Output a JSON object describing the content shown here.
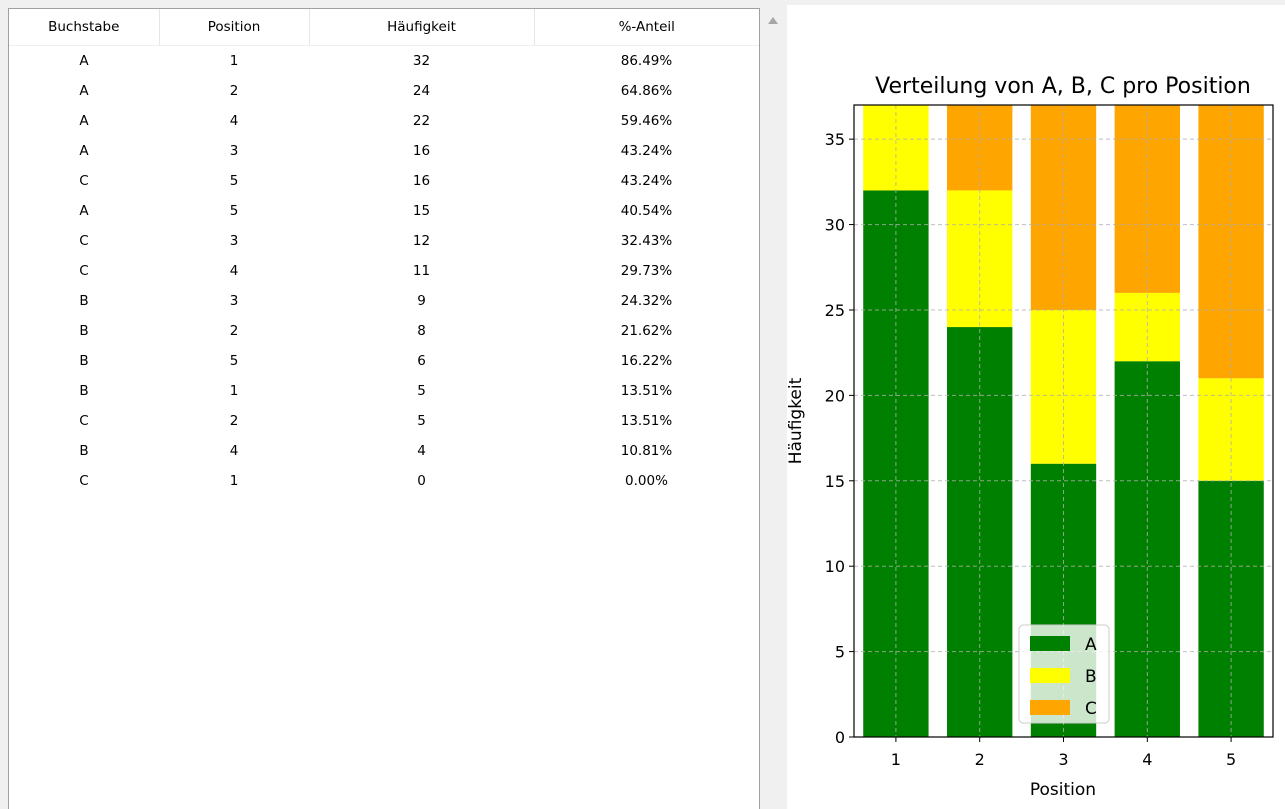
{
  "table": {
    "headers": [
      "Buchstabe",
      "Position",
      "Häufigkeit",
      "%-Anteil"
    ],
    "rows": [
      [
        "A",
        "1",
        "32",
        "86.49%"
      ],
      [
        "A",
        "2",
        "24",
        "64.86%"
      ],
      [
        "A",
        "4",
        "22",
        "59.46%"
      ],
      [
        "A",
        "3",
        "16",
        "43.24%"
      ],
      [
        "C",
        "5",
        "16",
        "43.24%"
      ],
      [
        "A",
        "5",
        "15",
        "40.54%"
      ],
      [
        "C",
        "3",
        "12",
        "32.43%"
      ],
      [
        "C",
        "4",
        "11",
        "29.73%"
      ],
      [
        "B",
        "3",
        "9",
        "24.32%"
      ],
      [
        "B",
        "2",
        "8",
        "21.62%"
      ],
      [
        "B",
        "5",
        "6",
        "16.22%"
      ],
      [
        "B",
        "1",
        "5",
        "13.51%"
      ],
      [
        "C",
        "2",
        "5",
        "13.51%"
      ],
      [
        "B",
        "4",
        "4",
        "10.81%"
      ],
      [
        "C",
        "1",
        "0",
        "0.00%"
      ]
    ]
  },
  "scrollbar": {
    "up_arrow_icon": "triangle-up-icon"
  },
  "chart_data": {
    "type": "bar",
    "stacked": true,
    "title": "Verteilung von A, B, C pro Position",
    "xlabel": "Position",
    "ylabel": "Häufigkeit",
    "categories": [
      "1",
      "2",
      "3",
      "4",
      "5"
    ],
    "series": [
      {
        "name": "A",
        "color": "#008000",
        "values": [
          32,
          24,
          16,
          22,
          15
        ]
      },
      {
        "name": "B",
        "color": "#ffff00",
        "values": [
          5,
          8,
          9,
          4,
          6
        ]
      },
      {
        "name": "C",
        "color": "#ffa500",
        "values": [
          0,
          5,
          12,
          11,
          16
        ]
      }
    ],
    "ylim": [
      0,
      37
    ],
    "yticks": [
      0,
      5,
      10,
      15,
      20,
      25,
      30,
      35
    ],
    "grid": true,
    "legend_position": "lower-center"
  }
}
